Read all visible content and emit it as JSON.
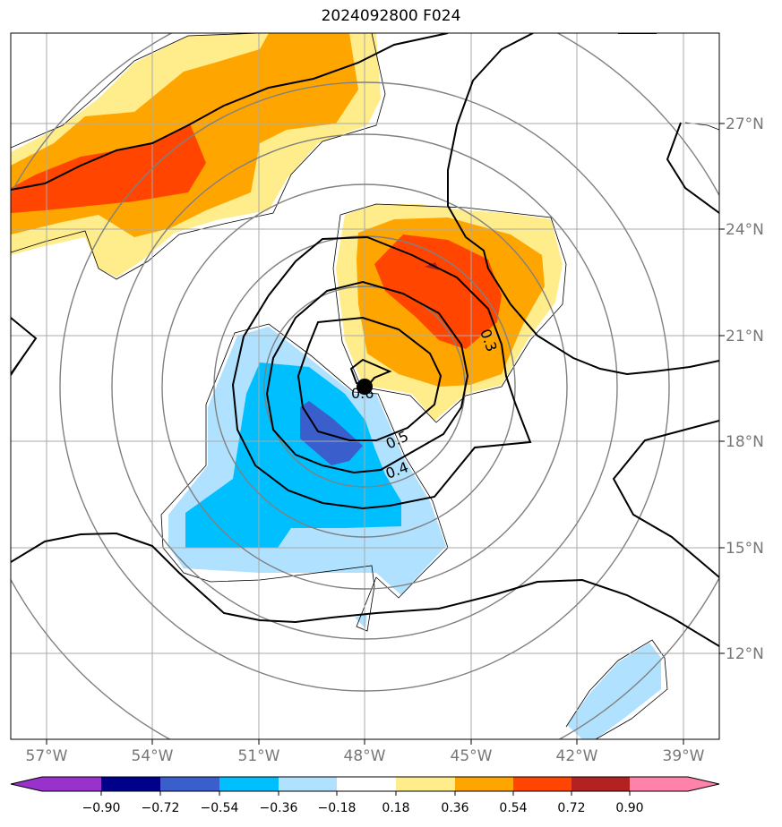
{
  "title": "2024092800 F024",
  "map": {
    "lon_range": [
      -58,
      -38
    ],
    "lat_range": [
      9.9,
      29.9
    ],
    "lat_labels": [
      "27°N",
      "24°N",
      "21°N",
      "18°N",
      "15°N",
      "12°N"
    ],
    "lon_labels": [
      "57°W",
      "54°W",
      "51°W",
      "48°W",
      "45°W",
      "42°W",
      "39°W"
    ],
    "center_marker": {
      "lon": -48.0,
      "lat": 19.6
    },
    "range_rings": 6,
    "contour_labels": [
      "0.3",
      "0.4",
      "0.5",
      "0.6"
    ]
  },
  "colorbar": {
    "ticks": [
      "−0.90",
      "−0.72",
      "−0.54",
      "−0.36",
      "−0.18",
      "0.18",
      "0.36",
      "0.54",
      "0.72",
      "0.90"
    ],
    "colors": [
      "#9932cc",
      "#00008b",
      "#3a5fcd",
      "#00bfff",
      "#b0e2ff",
      "#ffffff",
      "#ffec8b",
      "#ffa500",
      "#ff4500",
      "#b22222",
      "#ff82ab"
    ]
  },
  "colors": {
    "grid": "#aaaaaa",
    "rings": "#808080",
    "contours": "#000000"
  }
}
